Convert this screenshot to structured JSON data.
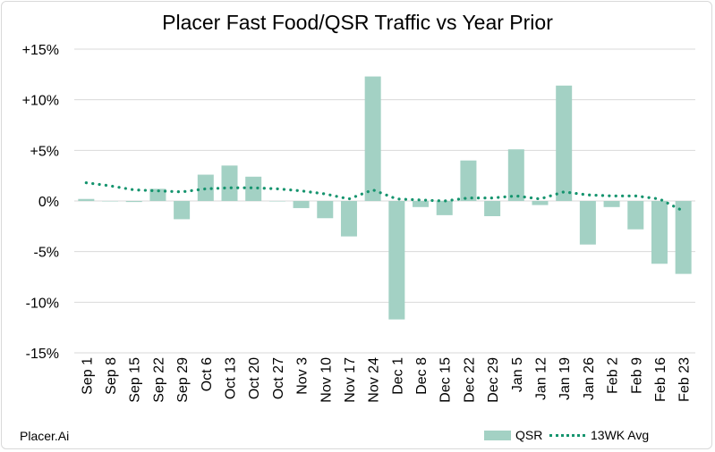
{
  "chart_data": {
    "type": "bar",
    "title": "Placer Fast Food/QSR Traffic vs Year Prior",
    "categories": [
      "Sep 1",
      "Sep 8",
      "Sep 15",
      "Sep 22",
      "Sep 29",
      "Oct 6",
      "Oct 13",
      "Oct 20",
      "Oct 27",
      "Nov 3",
      "Nov 10",
      "Nov 17",
      "Nov 24",
      "Dec 1",
      "Dec 8",
      "Dec 15",
      "Dec 22",
      "Dec 29",
      "Jan 5",
      "Jan 12",
      "Jan 19",
      "Jan 26",
      "Feb 2",
      "Feb 9",
      "Feb 16",
      "Feb 23"
    ],
    "series": [
      {
        "name": "QSR",
        "type": "bar",
        "color": "#a3d1c4",
        "values": [
          0.2,
          0,
          -0.1,
          1.2,
          -1.8,
          2.6,
          3.5,
          2.4,
          0,
          -0.7,
          -1.7,
          -3.5,
          12.3,
          -11.7,
          -0.6,
          -1.4,
          4.0,
          -1.5,
          5.1,
          -0.4,
          11.4,
          -4.3,
          -0.6,
          -2.8,
          -6.2,
          -7.2
        ]
      },
      {
        "name": "13WK Avg",
        "type": "line",
        "style": "dotted",
        "color": "#15946e",
        "values": [
          1.8,
          1.5,
          1.1,
          1.0,
          0.9,
          1.2,
          1.3,
          1.3,
          1.2,
          1.0,
          0.7,
          0.2,
          1.1,
          0.2,
          0.1,
          0.0,
          0.3,
          0.3,
          0.5,
          0.2,
          0.9,
          0.6,
          0.5,
          0.5,
          0.2,
          -1.0
        ]
      }
    ],
    "yticks": [
      "+15%",
      "+10%",
      "+5%",
      "0%",
      "-5%",
      "-10%",
      "-15%"
    ],
    "ylim": [
      -15,
      15
    ],
    "ylabel": "",
    "xlabel": "",
    "grid": true,
    "legend": "bottom-right"
  },
  "brand": "Placer.Ai"
}
